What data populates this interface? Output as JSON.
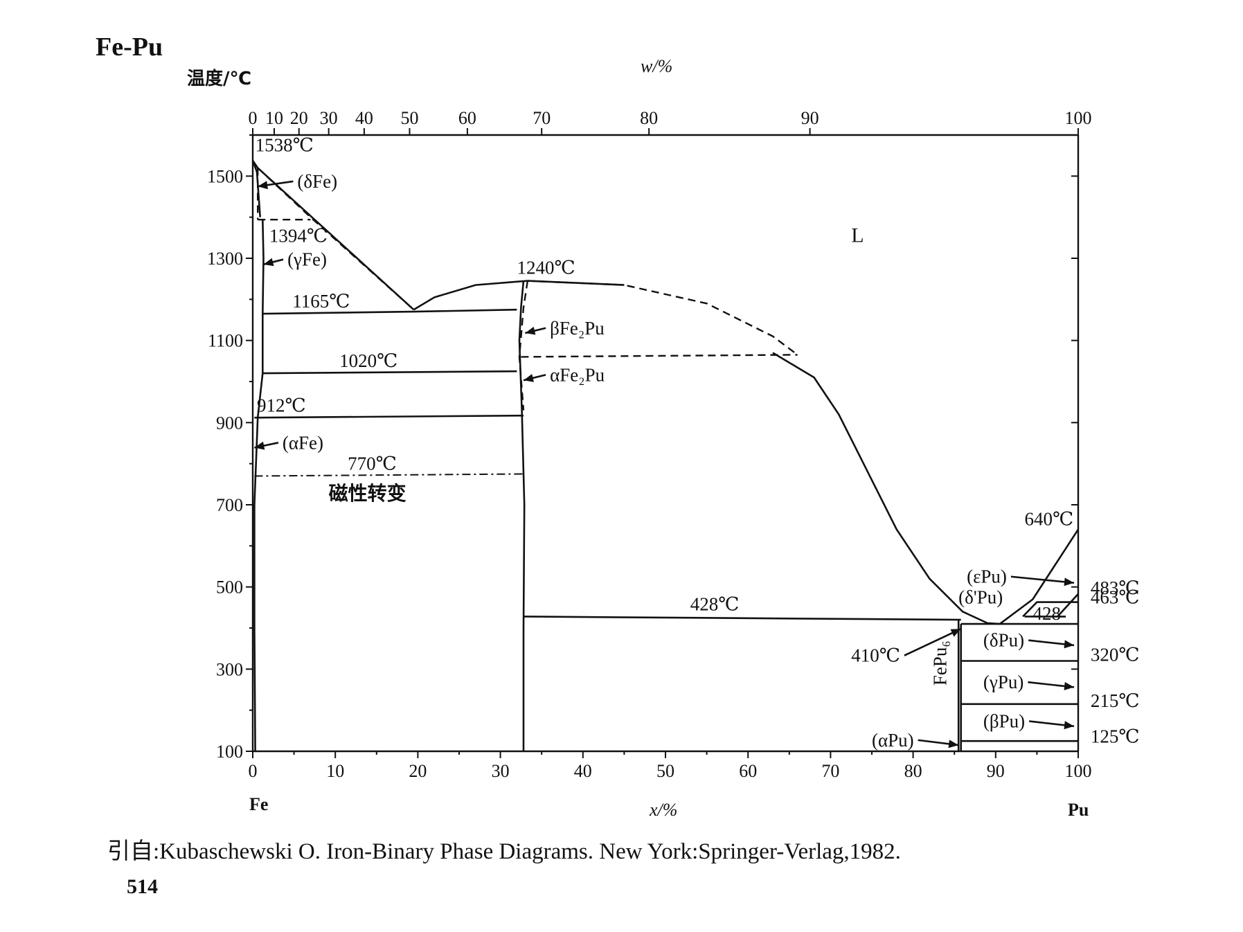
{
  "page": {
    "title": "Fe-Pu",
    "citation": "引自:Kubaschewski O.  Iron-Binary Phase Diagrams. New York:Springer-Verlag,1982.",
    "page_number": "514"
  },
  "chart_data": {
    "type": "line",
    "title": "Fe-Pu",
    "ylabel": "温度/℃",
    "xlabel": "x/%",
    "top_xlabel": "w/%",
    "ylim": [
      100,
      1600
    ],
    "xlim": [
      0,
      100
    ],
    "y_ticks": [
      100,
      300,
      500,
      700,
      900,
      1100,
      1300,
      1500
    ],
    "x_ticks": [
      0,
      10,
      20,
      30,
      40,
      50,
      60,
      70,
      80,
      90,
      100
    ],
    "x_tick_labels": [
      "0",
      "10",
      "20",
      "30",
      "40",
      "50",
      "60",
      "70",
      "80",
      "90",
      "100"
    ],
    "y_tick_labels": [
      "100",
      "300",
      "500",
      "700",
      "900",
      "1100",
      "1300",
      "1500"
    ],
    "top_ticks": [
      {
        "w": 0,
        "x": 0,
        "label": "0"
      },
      {
        "w": 10,
        "x": 2.6,
        "label": "10"
      },
      {
        "w": 20,
        "x": 5.6,
        "label": "20"
      },
      {
        "w": 30,
        "x": 9.2,
        "label": "30"
      },
      {
        "w": 40,
        "x": 13.5,
        "label": "40"
      },
      {
        "w": 50,
        "x": 19,
        "label": "50"
      },
      {
        "w": 60,
        "x": 26,
        "label": "60"
      },
      {
        "w": 70,
        "x": 35,
        "label": "70"
      },
      {
        "w": 80,
        "x": 48,
        "label": "80"
      },
      {
        "w": 90,
        "x": 67.5,
        "label": "90"
      },
      {
        "w": 100,
        "x": 100,
        "label": "100"
      }
    ],
    "endpoints": {
      "left": "Fe",
      "right": "Pu"
    },
    "solid_lines": [
      {
        "name": "liquidus-fe-rich",
        "points": [
          [
            0,
            1538
          ],
          [
            0.6,
            1520
          ],
          [
            19.5,
            1175
          ]
        ]
      },
      {
        "name": "dFe-solvus",
        "points": [
          [
            0,
            1538
          ],
          [
            0.5,
            1510
          ],
          [
            0.9,
            1400
          ]
        ]
      },
      {
        "name": "gFe-boundary",
        "points": [
          [
            1.2,
            1394
          ],
          [
            1.3,
            1300
          ],
          [
            1.2,
            1165
          ],
          [
            1.2,
            1020
          ],
          [
            0.6,
            912
          ]
        ]
      },
      {
        "name": "aFe-boundary",
        "points": [
          [
            0.6,
            912
          ],
          [
            0.2,
            700
          ],
          [
            0.2,
            400
          ],
          [
            0.3,
            100
          ]
        ]
      },
      {
        "name": "eutectic-1165",
        "points": [
          [
            1.2,
            1165
          ],
          [
            19.5,
            1170
          ],
          [
            32,
            1175
          ]
        ]
      },
      {
        "name": "line-1020",
        "points": [
          [
            1.2,
            1020
          ],
          [
            32,
            1025
          ]
        ]
      },
      {
        "name": "line-912",
        "points": [
          [
            0.2,
            912
          ],
          [
            32.8,
            917
          ]
        ]
      },
      {
        "name": "liquidus-Fe2Pu-left",
        "points": [
          [
            19.5,
            1175
          ],
          [
            22,
            1205
          ],
          [
            27,
            1235
          ],
          [
            33.3,
            1245
          ]
        ]
      },
      {
        "name": "liquidus-Fe2Pu-right",
        "points": [
          [
            33.3,
            1245
          ],
          [
            45,
            1235
          ]
        ]
      },
      {
        "name": "liquidus-right-lower",
        "points": [
          [
            63,
            1070
          ],
          [
            68,
            1010
          ],
          [
            71,
            920
          ],
          [
            74,
            800
          ],
          [
            78,
            640
          ],
          [
            82,
            520
          ],
          [
            86,
            440
          ],
          [
            89,
            412
          ],
          [
            90.5,
            410
          ]
        ]
      },
      {
        "name": "Fe2Pu-phase",
        "points": [
          [
            32.8,
            1245
          ],
          [
            32.5,
            1180
          ],
          [
            32.3,
            1100
          ],
          [
            32.6,
            930
          ],
          [
            32.9,
            700
          ],
          [
            32.8,
            400
          ],
          [
            32.8,
            100
          ]
        ]
      },
      {
        "name": "line-428",
        "points": [
          [
            32.8,
            428
          ],
          [
            85.8,
            420
          ]
        ]
      },
      {
        "name": "FePu6-left",
        "points": [
          [
            85.5,
            420
          ],
          [
            85.5,
            100
          ]
        ]
      },
      {
        "name": "FePu6-right",
        "points": [
          [
            85.8,
            410
          ],
          [
            85.8,
            100
          ]
        ]
      },
      {
        "name": "line-410",
        "points": [
          [
            85.8,
            410
          ],
          [
            100,
            410
          ]
        ]
      },
      {
        "name": "liquidus-Pu",
        "points": [
          [
            90.5,
            410
          ],
          [
            94.5,
            470
          ],
          [
            100,
            640
          ]
        ]
      },
      {
        "name": "ePu-dPu",
        "points": [
          [
            93.3,
            428
          ],
          [
            95,
            463
          ],
          [
            100,
            463
          ]
        ]
      },
      {
        "name": "line-428-Pu",
        "points": [
          [
            93.5,
            428
          ],
          [
            98.5,
            428
          ]
        ]
      },
      {
        "name": "line-320",
        "points": [
          [
            85.8,
            320
          ],
          [
            100,
            320
          ]
        ]
      },
      {
        "name": "line-215",
        "points": [
          [
            85.8,
            215
          ],
          [
            100,
            215
          ]
        ]
      },
      {
        "name": "line-125",
        "points": [
          [
            85.8,
            125
          ],
          [
            100,
            125
          ]
        ]
      },
      {
        "name": "ePu-483",
        "points": [
          [
            97.5,
            428
          ],
          [
            100,
            483
          ]
        ]
      }
    ],
    "dashed_lines": [
      {
        "name": "liquidus-dFe",
        "points": [
          [
            0.6,
            1520
          ],
          [
            7,
            1400
          ],
          [
            19.5,
            1175
          ]
        ]
      },
      {
        "name": "peritectic-1394",
        "points": [
          [
            0.6,
            1394
          ],
          [
            7,
            1394
          ]
        ]
      },
      {
        "name": "dFe-lower",
        "points": [
          [
            0.6,
            1520
          ],
          [
            0.6,
            1460
          ],
          [
            0.6,
            1394
          ]
        ]
      },
      {
        "name": "liquidus-dashed",
        "points": [
          [
            33.3,
            1245
          ],
          [
            45,
            1235
          ],
          [
            55,
            1190
          ],
          [
            63,
            1110
          ],
          [
            66,
            1065
          ]
        ]
      },
      {
        "name": "line-1060",
        "points": [
          [
            32.5,
            1060
          ],
          [
            66,
            1065
          ]
        ]
      },
      {
        "name": "Fe2Pu-dashed",
        "points": [
          [
            33.3,
            1245
          ],
          [
            32.8,
            1180
          ],
          [
            32.3,
            1060
          ],
          [
            32.8,
            930
          ]
        ]
      }
    ],
    "dashdot_lines": [
      {
        "name": "magnetic-770",
        "points": [
          [
            0.2,
            770
          ],
          [
            32.8,
            775
          ]
        ]
      }
    ],
    "annotations": [
      {
        "text": "1538℃",
        "x": 0.3,
        "y": 1560
      },
      {
        "text": "(δFe)",
        "x": 5.4,
        "y": 1472,
        "arrow_to": [
          0.6,
          1475
        ]
      },
      {
        "text": "1394℃",
        "x": 2.0,
        "y": 1340
      },
      {
        "text": "(γFe)",
        "x": 4.2,
        "y": 1282,
        "arrow_to": [
          1.3,
          1285
        ]
      },
      {
        "text": "1165℃",
        "x": 4.8,
        "y": 1180
      },
      {
        "text": "1240℃",
        "x": 32.0,
        "y": 1262
      },
      {
        "text": "βFe₂Pu",
        "x": 36.0,
        "y": 1115,
        "arrow_to": [
          33.0,
          1118
        ]
      },
      {
        "text": "1020℃",
        "x": 10.5,
        "y": 1035
      },
      {
        "text": "αFe₂Pu",
        "x": 36.0,
        "y": 1001,
        "arrow_to": [
          32.8,
          1003
        ]
      },
      {
        "text": "912℃",
        "x": 0.5,
        "y": 927
      },
      {
        "text": "(αFe)",
        "x": 3.6,
        "y": 836,
        "arrow_to": [
          0.2,
          839
        ]
      },
      {
        "text": "770℃",
        "x": 11.5,
        "y": 785
      },
      {
        "text": "磁性转变",
        "x": 9.2,
        "y": 712
      },
      {
        "text": "L",
        "x": 72.5,
        "y": 1340
      },
      {
        "text": "640℃",
        "x": 93.5,
        "y": 650
      },
      {
        "text": "(εPu)",
        "x": 86.5,
        "y": 510,
        "arrow_to": [
          99.5,
          510
        ]
      },
      {
        "text": "(δ'Pu)",
        "x": 85.5,
        "y": 460
      },
      {
        "text": "428",
        "x": 94.5,
        "y": 420
      },
      {
        "text": "483℃",
        "x": 101.5,
        "y": 483
      },
      {
        "text": "463℃",
        "x": 101.5,
        "y": 460
      },
      {
        "text": "428℃",
        "x": 53.0,
        "y": 443
      },
      {
        "text": "410℃",
        "x": 72.5,
        "y": 318,
        "arrow_to": [
          85.8,
          398
        ]
      },
      {
        "text": "(δPu)",
        "x": 88.5,
        "y": 355,
        "arrow_to": [
          99.5,
          358
        ]
      },
      {
        "text": "320℃",
        "x": 101.5,
        "y": 320
      },
      {
        "text": "(γPu)",
        "x": 88.5,
        "y": 253,
        "arrow_to": [
          99.5,
          256
        ]
      },
      {
        "text": "215℃",
        "x": 101.5,
        "y": 208
      },
      {
        "text": "(βPu)",
        "x": 88.5,
        "y": 158,
        "arrow_to": [
          99.5,
          161
        ]
      },
      {
        "text": "125℃",
        "x": 101.5,
        "y": 121
      },
      {
        "text": "(αPu)",
        "x": 75.0,
        "y": 112,
        "arrow_to": [
          85.5,
          115
        ]
      },
      {
        "text": "FePu₆",
        "x": 84.0,
        "y": 260,
        "rotate": -90
      }
    ],
    "grid": false
  }
}
